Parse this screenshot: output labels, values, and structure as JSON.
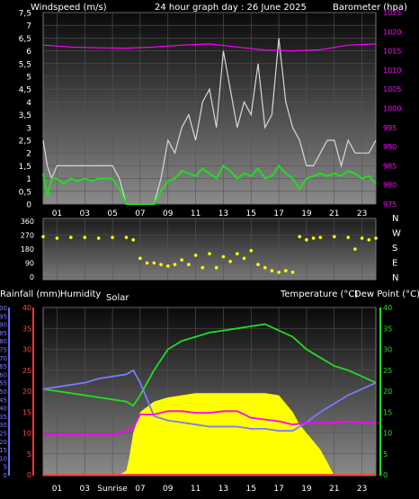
{
  "header": {
    "left_label": "Windspeed (m/s)",
    "center_label": "24 hour graph day : 26 June 2025",
    "right_label": "Barometer (hpa)"
  },
  "labels_mid": {
    "rain": "Rainfall (mm)",
    "humidity": "Humidity",
    "solar": "Solar",
    "temperature": "Temperature (°C)",
    "dew_point": "Dew Point (°C)"
  },
  "direction_letters": [
    "N",
    "W",
    "S",
    "E",
    "N"
  ],
  "colors": {
    "wind_speed": "#d8d8d8",
    "wind_avg": "#22dd22",
    "barometer": "#ff00ff",
    "direction": "#ffff00",
    "temperature": "#22dd22",
    "dew_point": "#7a7aff",
    "humidity": "#ff00ff",
    "solar": "#ffff00",
    "rain": "#ff4444"
  },
  "chart_data": [
    {
      "type": "line",
      "name": "wind-barometer",
      "x_tick_labels": [
        "01",
        "03",
        "05",
        "07",
        "09",
        "11",
        "13",
        "15",
        "17",
        "19",
        "21",
        "23"
      ],
      "xlim": [
        0,
        24
      ],
      "left_axis": {
        "label": "Windspeed (m/s)",
        "ylim": [
          0,
          7.5
        ],
        "ticks": [
          "0",
          "0,5",
          "1",
          "1,5",
          "2",
          "2,5",
          "3",
          "3,5",
          "4",
          "4,5",
          "5",
          "5,5",
          "6",
          "6,5",
          "7",
          "7,5"
        ]
      },
      "right_axis": {
        "label": "Barometer (hpa)",
        "ylim": [
          975,
          1025
        ],
        "ticks": [
          "975",
          "980",
          "985",
          "990",
          "995",
          "1000",
          "1005",
          "1010",
          "1015",
          "1020",
          "1025"
        ]
      },
      "series": [
        {
          "key": "wind_speed",
          "axis": "left",
          "x": [
            0,
            0.3,
            0.6,
            1,
            1.5,
            2,
            2.5,
            3,
            3.5,
            4,
            4.5,
            5,
            5.5,
            6,
            6.5,
            7,
            7.5,
            8,
            8.5,
            9,
            9.5,
            10,
            10.5,
            11,
            11.5,
            12,
            12.5,
            13,
            13.5,
            14,
            14.5,
            15,
            15.5,
            16,
            16.5,
            17,
            17.5,
            18,
            18.5,
            19,
            19.5,
            20,
            20.5,
            21,
            21.5,
            22,
            22.5,
            23,
            23.5,
            24
          ],
          "y": [
            2.5,
            1.5,
            1,
            1.5,
            1.5,
            1.5,
            1.5,
            1.5,
            1.5,
            1.5,
            1.5,
            1.5,
            1,
            0,
            0,
            0,
            0,
            0,
            1,
            2.5,
            2,
            3,
            3.5,
            2.5,
            4,
            4.5,
            3,
            6,
            4.5,
            3,
            4,
            3.5,
            5.5,
            3,
            3.5,
            6.5,
            4,
            3,
            2.5,
            1.5,
            1.5,
            2,
            2.5,
            2.5,
            1.5,
            2.5,
            2,
            2,
            2,
            2.5
          ]
        },
        {
          "key": "wind_avg",
          "axis": "left",
          "x": [
            0,
            0.3,
            0.6,
            1,
            1.5,
            2,
            2.5,
            3,
            3.5,
            4,
            4.5,
            5,
            5.5,
            6,
            6.5,
            7,
            7.5,
            8,
            8.5,
            9,
            9.5,
            10,
            10.5,
            11,
            11.5,
            12,
            12.5,
            13,
            13.5,
            14,
            14.5,
            15,
            15.5,
            16,
            16.5,
            17,
            17.5,
            18,
            18.5,
            19,
            19.5,
            20,
            20.5,
            21,
            21.5,
            22,
            22.5,
            23,
            23.5,
            24
          ],
          "y": [
            1.2,
            0.3,
            1,
            1,
            0.8,
            1,
            0.9,
            1,
            0.9,
            1,
            1,
            1,
            0.6,
            0,
            0,
            0,
            0,
            0,
            0.5,
            0.9,
            1,
            1.3,
            1.2,
            1.1,
            1.4,
            1.2,
            1,
            1.5,
            1.3,
            1,
            1.2,
            1.1,
            1.4,
            1,
            1.1,
            1.5,
            1.2,
            1,
            0.6,
            1,
            1.1,
            1.2,
            1.1,
            1.2,
            1.1,
            1.3,
            1.2,
            1,
            1.1,
            0.8
          ]
        },
        {
          "key": "barometer",
          "axis": "right",
          "x": [
            0,
            2,
            4,
            6,
            8,
            10,
            12,
            14,
            16,
            18,
            20,
            22,
            24
          ],
          "y": [
            1016.5,
            1016,
            1015.8,
            1015.7,
            1016,
            1016.5,
            1016.8,
            1016,
            1015.2,
            1015,
            1015.3,
            1016.5,
            1016.8
          ]
        }
      ]
    },
    {
      "type": "scatter",
      "name": "wind-direction",
      "xlim": [
        0,
        24
      ],
      "ylim": [
        0,
        360
      ],
      "y_ticks": [
        "0",
        "90",
        "180",
        "270",
        "360"
      ],
      "series": [
        {
          "key": "direction",
          "x": [
            0,
            1,
            2,
            3,
            4,
            5,
            6,
            6.5,
            7,
            7.5,
            8,
            8.5,
            9,
            9.5,
            10,
            10.5,
            11,
            11.5,
            12,
            12.5,
            13,
            13.5,
            14,
            14.5,
            15,
            15.5,
            16,
            16.5,
            17,
            17.5,
            18,
            18.5,
            19,
            19.5,
            20,
            21,
            22,
            22.5,
            23,
            23.5,
            24
          ],
          "y": [
            260,
            250,
            255,
            255,
            250,
            255,
            255,
            240,
            120,
            90,
            90,
            80,
            70,
            80,
            110,
            80,
            140,
            60,
            150,
            60,
            130,
            100,
            150,
            120,
            170,
            80,
            60,
            40,
            30,
            40,
            30,
            260,
            240,
            250,
            255,
            260,
            255,
            180,
            250,
            240,
            250
          ]
        }
      ]
    },
    {
      "type": "line",
      "name": "temp-humidity-solar",
      "x_tick_labels": [
        "01",
        "03",
        "Sunrise",
        "07",
        "09",
        "11",
        "13",
        "15",
        "17",
        "19",
        "21",
        "23"
      ],
      "xlim": [
        0,
        24
      ],
      "left_axes": [
        {
          "label": "Humidity",
          "ylim": [
            0,
            100
          ],
          "ticks": [
            "0",
            "5",
            "10",
            "15",
            "20",
            "25",
            "30",
            "35",
            "40",
            "45",
            "50",
            "55",
            "60",
            "65",
            "70",
            "75",
            "80",
            "85",
            "90",
            "95",
            "100"
          ]
        },
        {
          "label": "Rainfall (mm)",
          "ylim": [
            0,
            40
          ],
          "ticks": [
            "0",
            "5",
            "10",
            "15",
            "20",
            "25",
            "30",
            "35",
            "40"
          ]
        }
      ],
      "right_axis": {
        "label": "Temperature (°C)",
        "ylim": [
          0,
          40
        ],
        "ticks": [
          "0",
          "5",
          "10",
          "15",
          "20",
          "25",
          "30",
          "35",
          "40"
        ]
      },
      "series": [
        {
          "key": "temperature",
          "axis": "right",
          "x": [
            0,
            1,
            2,
            3,
            4,
            5,
            6,
            6.5,
            7,
            8,
            9,
            10,
            11,
            12,
            13,
            14,
            15,
            16,
            17,
            18,
            19,
            20,
            21,
            22,
            23,
            24
          ],
          "y": [
            20.5,
            20,
            19.5,
            19,
            18.5,
            18,
            17.5,
            16.5,
            19,
            25,
            30,
            32,
            33,
            34,
            34.5,
            35,
            35.5,
            36,
            34.5,
            33,
            30,
            28,
            26,
            25,
            23.5,
            22
          ]
        },
        {
          "key": "dew_point",
          "axis": "right",
          "x": [
            0,
            1,
            2,
            3,
            4,
            5,
            6,
            6.5,
            7,
            8,
            9,
            10,
            11,
            12,
            13,
            14,
            15,
            16,
            17,
            18,
            19,
            20,
            21,
            22,
            23,
            24
          ],
          "y": [
            20.5,
            21,
            21.5,
            22,
            23,
            23.5,
            24,
            25,
            22,
            14,
            13,
            12.5,
            12,
            11.5,
            11.5,
            11.5,
            11,
            11,
            10.5,
            10.5,
            12.5,
            15,
            17,
            19,
            20.5,
            22
          ]
        },
        {
          "key": "humidity",
          "axis": "left",
          "x": [
            0,
            1,
            2,
            3,
            4,
            5,
            6,
            6.5,
            7,
            8,
            9,
            10,
            11,
            12,
            13,
            14,
            15,
            16,
            17,
            18,
            19,
            20,
            21,
            22,
            23,
            24
          ],
          "y": [
            24,
            24,
            24,
            24,
            24,
            24,
            26,
            28,
            36,
            36,
            38,
            38,
            37,
            37,
            38,
            38,
            34,
            33,
            32,
            30,
            31,
            31,
            31,
            32,
            31,
            31
          ]
        },
        {
          "key": "solar",
          "axis": "right",
          "fill": true,
          "x": [
            0,
            5.5,
            6,
            6.2,
            6.5,
            7,
            8,
            9,
            10,
            11,
            12,
            13,
            14,
            15,
            16,
            17,
            17.5,
            18,
            18.5,
            19,
            19.5,
            20,
            20.5,
            20.8,
            21,
            24
          ],
          "y": [
            0,
            0,
            1,
            4,
            10,
            15,
            17.5,
            18.5,
            19,
            19.5,
            19.5,
            19.5,
            19.5,
            19.5,
            19.5,
            19,
            17,
            15,
            12,
            10,
            8,
            6,
            3,
            1,
            0,
            0
          ]
        },
        {
          "key": "rain",
          "axis": "rain",
          "x": [
            0,
            24
          ],
          "y": [
            0,
            0
          ]
        }
      ]
    }
  ]
}
